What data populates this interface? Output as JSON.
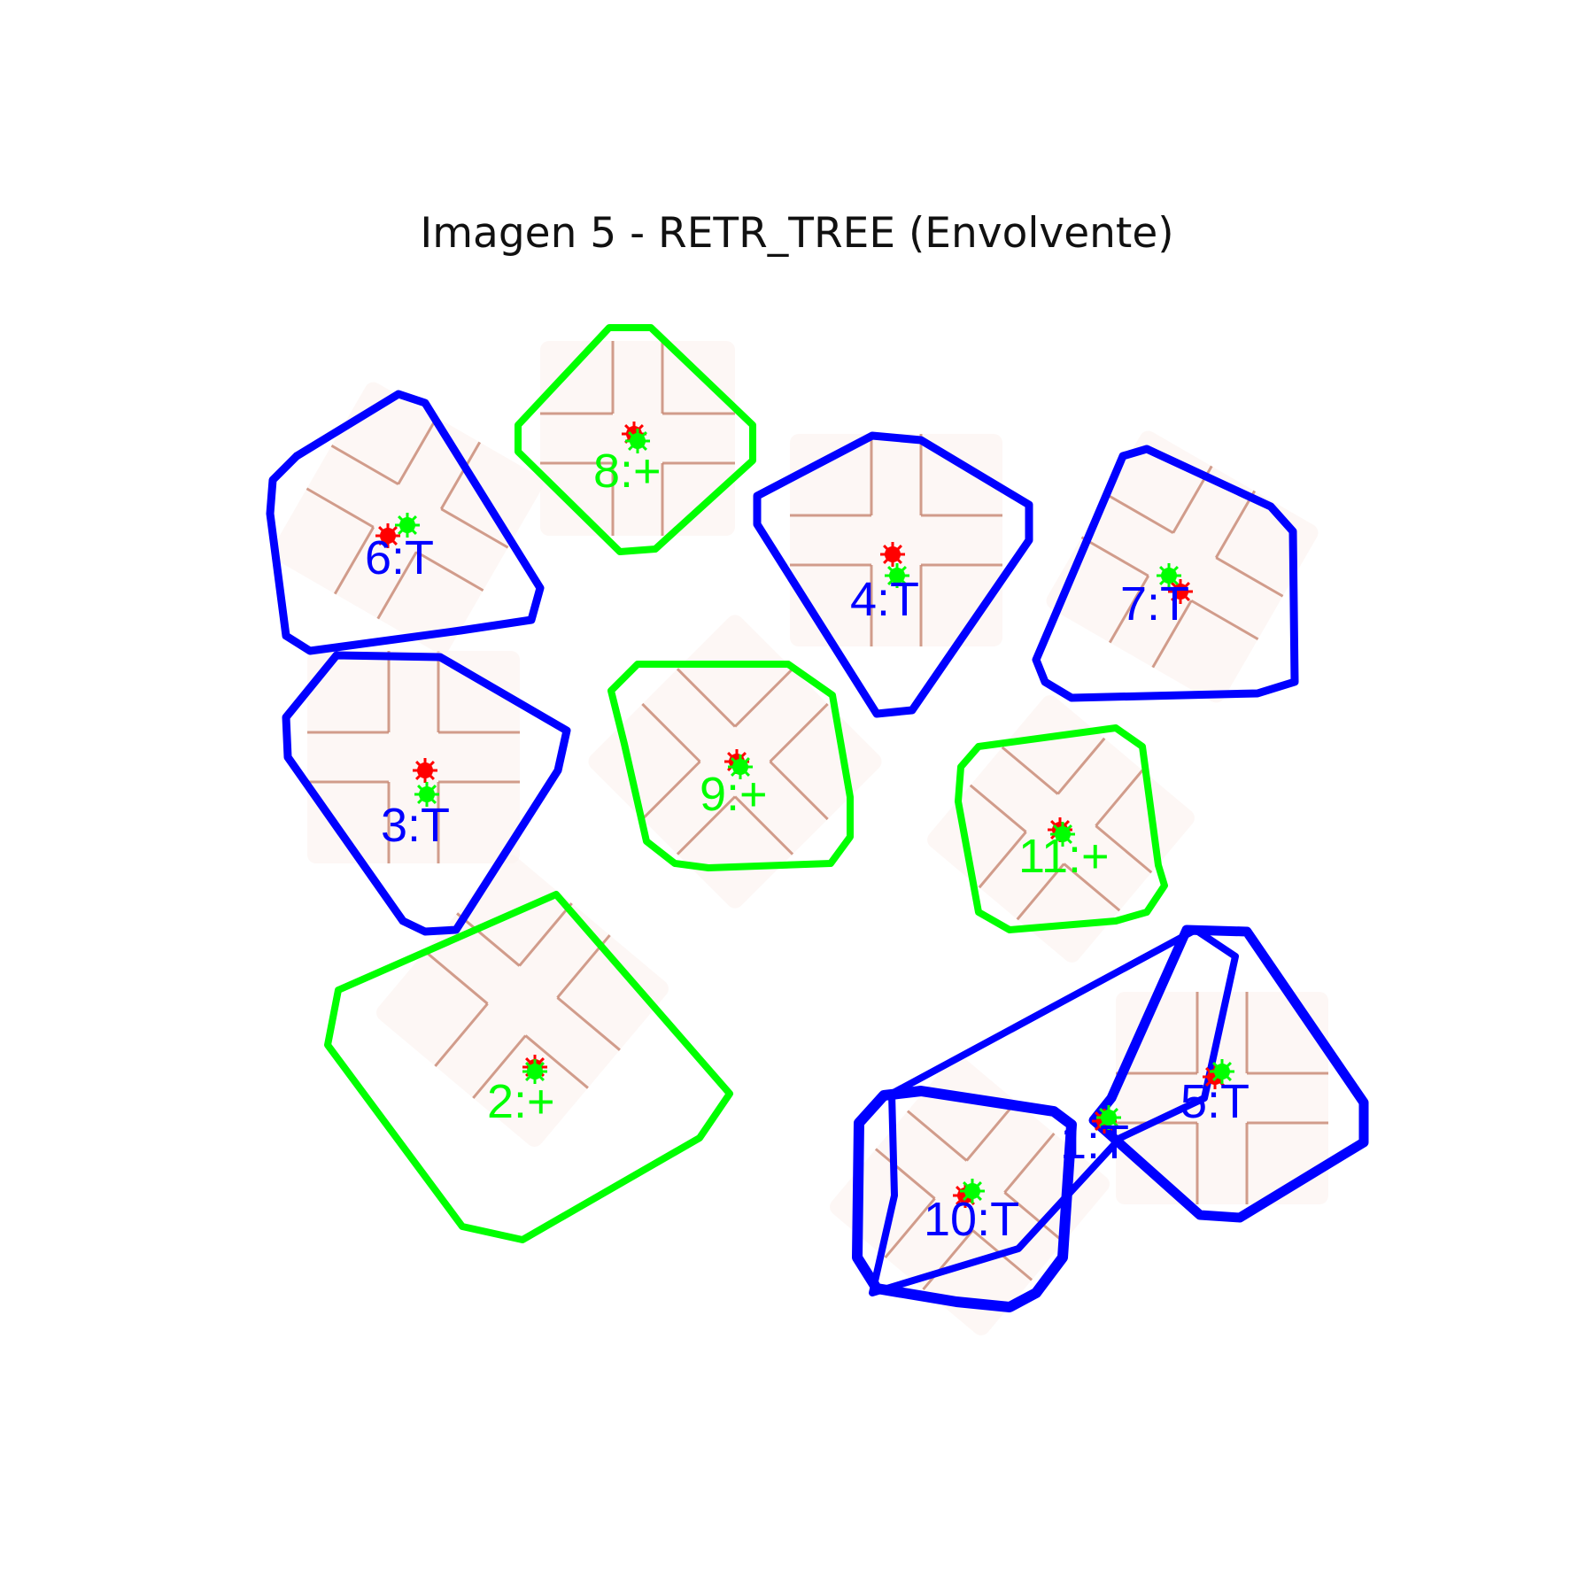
{
  "title": "Imagen 5 - RETR_TREE (Envolvente)",
  "colors": {
    "T": "#0000ff",
    "+": "#00ff00",
    "centroid_red": "#ff0000",
    "centroid_green": "#00ff00",
    "tile_line": "#c98c78",
    "tile_fill": "#fbf2ef"
  },
  "shapes": [
    {
      "id": "1",
      "type": "T",
      "label": "1:T"
    },
    {
      "id": "2",
      "type": "+",
      "label": "2:+"
    },
    {
      "id": "3",
      "type": "T",
      "label": "3:T"
    },
    {
      "id": "4",
      "type": "T",
      "label": "4:T"
    },
    {
      "id": "5",
      "type": "T",
      "label": "5:T"
    },
    {
      "id": "6",
      "type": "T",
      "label": "6:T"
    },
    {
      "id": "7",
      "type": "T",
      "label": "7:T"
    },
    {
      "id": "8",
      "type": "+",
      "label": "8:+"
    },
    {
      "id": "9",
      "type": "+",
      "label": "9:+"
    },
    {
      "id": "10",
      "type": "T",
      "label": "10:T"
    },
    {
      "id": "11",
      "type": "+",
      "label": "11:+"
    }
  ]
}
